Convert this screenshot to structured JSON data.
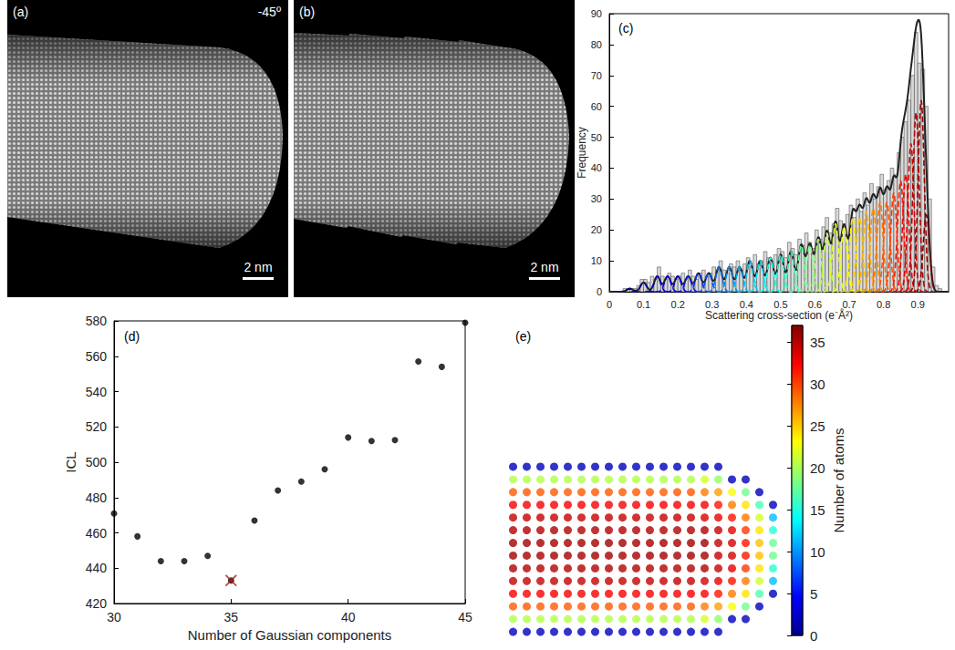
{
  "images": [
    {
      "title": "(a)",
      "annotation": "-45º",
      "scale_bar": "2 nm"
    },
    {
      "title": "(b)",
      "scale_bar": "2 nm"
    }
  ],
  "chart_data": [
    {
      "type": "histogram",
      "title": "(c)",
      "x_label": "Scattering cross-section (e⁻Å²)",
      "y_label": "Frequency",
      "bins": [
        0,
        0.01,
        0.02,
        0.03,
        0.04,
        0.05,
        0.06,
        0.07,
        0.08,
        0.09,
        0.1,
        0.11,
        0.12,
        0.13,
        0.14,
        0.15,
        0.16,
        0.17,
        0.18,
        0.19,
        0.2,
        0.21,
        0.22,
        0.23,
        0.24,
        0.25,
        0.26,
        0.27,
        0.28,
        0.29,
        0.3,
        0.31,
        0.32,
        0.33,
        0.34,
        0.35,
        0.36,
        0.37,
        0.38,
        0.39,
        0.4,
        0.41,
        0.42,
        0.43,
        0.44,
        0.45,
        0.46,
        0.47,
        0.48,
        0.49,
        0.5,
        0.51,
        0.52,
        0.53,
        0.54,
        0.55,
        0.56,
        0.57,
        0.58,
        0.59,
        0.6,
        0.61,
        0.62,
        0.63,
        0.64,
        0.65,
        0.66,
        0.67,
        0.68,
        0.69,
        0.7,
        0.71,
        0.72,
        0.73,
        0.74,
        0.75,
        0.76,
        0.77,
        0.78,
        0.79,
        0.8,
        0.81,
        0.82,
        0.83,
        0.84,
        0.85,
        0.86,
        0.87,
        0.88,
        0.89,
        0.9,
        0.91,
        0.92,
        0.93,
        0.94,
        0.95,
        0.96,
        0.97,
        0.98
      ],
      "counts": [
        0,
        0,
        0,
        0,
        1,
        1,
        1,
        1,
        2,
        4,
        4,
        3,
        5,
        4,
        8,
        5,
        4,
        6,
        5,
        4,
        5,
        6,
        4,
        7,
        5,
        4,
        6,
        7,
        5,
        6,
        8,
        7,
        10,
        7,
        6,
        9,
        8,
        10,
        7,
        9,
        11,
        8,
        12,
        9,
        10,
        13,
        11,
        9,
        12,
        14,
        13,
        11,
        16,
        14,
        12,
        17,
        15,
        19,
        16,
        14,
        20,
        17,
        21,
        24,
        19,
        22,
        27,
        23,
        20,
        25,
        28,
        24,
        30,
        26,
        32,
        28,
        35,
        30,
        34,
        38,
        33,
        36,
        40,
        38,
        45,
        50,
        55,
        62,
        70,
        84,
        74,
        72,
        60,
        30,
        8,
        2,
        1,
        0
      ],
      "color": "#d9d9d9",
      "components": {
        "means": [
          0.06,
          0.1,
          0.14,
          0.17,
          0.2,
          0.23,
          0.26,
          0.29,
          0.32,
          0.35,
          0.38,
          0.41,
          0.44,
          0.47,
          0.5,
          0.53,
          0.56,
          0.585,
          0.61,
          0.635,
          0.66,
          0.685,
          0.71,
          0.73,
          0.75,
          0.77,
          0.79,
          0.81,
          0.83,
          0.85,
          0.865,
          0.88,
          0.895,
          0.91,
          0.925
        ],
        "heights": [
          1,
          3,
          5,
          5,
          5,
          5,
          6,
          6,
          8,
          8,
          8,
          10,
          10,
          11,
          12,
          13,
          15,
          15,
          17,
          19,
          22,
          21,
          24,
          24,
          26,
          27,
          29,
          29,
          32,
          36,
          38,
          48,
          58,
          62,
          25
        ],
        "sigma": 0.009,
        "colors": [
          "#00008f",
          "#0000b0",
          "#0000d0",
          "#0000f0",
          "#0000ff",
          "#0016ff",
          "#0034ff",
          "#0052ff",
          "#0070ff",
          "#008eff",
          "#00acff",
          "#00caff",
          "#00e8ff",
          "#06fff9",
          "#24ffdb",
          "#42ffbd",
          "#60ff9f",
          "#80ff80",
          "#9fff60",
          "#bdff42",
          "#dbff24",
          "#f9ff06",
          "#ffe800",
          "#ffca00",
          "#ffac00",
          "#ff8e00",
          "#ff7000",
          "#ff5200",
          "#ff3400",
          "#ff1600",
          "#f80000",
          "#d80000",
          "#b80000",
          "#9a0000",
          "#800000"
        ],
        "line_style": "dashed"
      },
      "fit_color": "#222222",
      "xlim": [
        0,
        0.99
      ],
      "xticks": [
        0,
        0.1,
        0.2,
        0.3,
        0.4,
        0.5,
        0.6,
        0.7,
        0.8,
        0.9
      ],
      "ylim": [
        0,
        90
      ],
      "yticks": [
        0,
        10,
        20,
        30,
        40,
        50,
        60,
        70,
        80,
        90
      ],
      "grid": false
    },
    {
      "type": "scatter",
      "title": "(d)",
      "x_label": "Number of Gaussian components",
      "y_label": "ICL",
      "x": [
        30,
        31,
        32,
        33,
        34,
        35,
        36,
        37,
        38,
        39,
        40,
        41,
        42,
        43,
        44,
        45
      ],
      "values": [
        471,
        458,
        444,
        444,
        447,
        433,
        467,
        484,
        489,
        496,
        514,
        512,
        512.5,
        557,
        554,
        579
      ],
      "color": "#000000",
      "marker": "circle",
      "selected": {
        "x": 35,
        "y": 433,
        "color": "#b01c1c",
        "marker": "x"
      },
      "xlim": [
        30,
        45
      ],
      "xticks": [
        30,
        35,
        40,
        45
      ],
      "ylim": [
        420,
        580
      ],
      "yticks": [
        420,
        440,
        460,
        480,
        500,
        520,
        540,
        560,
        580
      ],
      "grid": false
    },
    {
      "type": "heatmap",
      "title": "(e)",
      "cells": [
        [
          3,
          3,
          3,
          3,
          3,
          3,
          3,
          3,
          3,
          3,
          3,
          3,
          3,
          3,
          3,
          3,
          null,
          null,
          null,
          null
        ],
        [
          20,
          20,
          20,
          20,
          20,
          20,
          20,
          20,
          20,
          20,
          20,
          20,
          20,
          20,
          21,
          19,
          3,
          3,
          null,
          null
        ],
        [
          27,
          27,
          27,
          27,
          27,
          27,
          27,
          27,
          27,
          27,
          27,
          27,
          27,
          27,
          26,
          25,
          22,
          18,
          3,
          null
        ],
        [
          30,
          30,
          30,
          30,
          30,
          30,
          30,
          30,
          30,
          30,
          30,
          30,
          30,
          30,
          30,
          29,
          26,
          23,
          17,
          3
        ],
        [
          33,
          33,
          33,
          33,
          33,
          33,
          33,
          33,
          33,
          33,
          33,
          33,
          33,
          33,
          32,
          31,
          29,
          26,
          21,
          13
        ],
        [
          34,
          34,
          34,
          34,
          34,
          34,
          34,
          34,
          34,
          34,
          34,
          34,
          34,
          34,
          34,
          33,
          31,
          28,
          23,
          16
        ],
        [
          35,
          35,
          35,
          35,
          35,
          35,
          35,
          35,
          35,
          35,
          35,
          35,
          35,
          35,
          35,
          33,
          32,
          29,
          24,
          18
        ],
        [
          35,
          35,
          35,
          35,
          35,
          35,
          35,
          35,
          35,
          35,
          35,
          35,
          35,
          35,
          35,
          33,
          32,
          29,
          24,
          18
        ],
        [
          34,
          34,
          34,
          34,
          34,
          34,
          34,
          34,
          34,
          34,
          34,
          34,
          34,
          34,
          34,
          33,
          31,
          28,
          23,
          16
        ],
        [
          33,
          33,
          33,
          33,
          33,
          33,
          33,
          33,
          33,
          33,
          33,
          33,
          33,
          33,
          32,
          31,
          29,
          26,
          21,
          13
        ],
        [
          30,
          30,
          30,
          30,
          30,
          30,
          30,
          30,
          30,
          30,
          30,
          30,
          30,
          30,
          30,
          29,
          26,
          23,
          17,
          3
        ],
        [
          27,
          27,
          27,
          27,
          27,
          27,
          27,
          27,
          27,
          27,
          27,
          27,
          27,
          27,
          26,
          25,
          22,
          18,
          3,
          null
        ],
        [
          20,
          20,
          20,
          20,
          20,
          20,
          20,
          20,
          20,
          20,
          20,
          20,
          20,
          20,
          21,
          19,
          3,
          3,
          null,
          null
        ],
        [
          3,
          3,
          3,
          3,
          3,
          3,
          3,
          3,
          3,
          3,
          3,
          3,
          3,
          3,
          3,
          3,
          null,
          null,
          null,
          null
        ]
      ],
      "colorbar": {
        "label": "Number of atoms",
        "lim": [
          0,
          37
        ],
        "ticks": [
          0,
          5,
          10,
          15,
          20,
          25,
          30,
          35
        ]
      },
      "tick_labels": false
    }
  ]
}
